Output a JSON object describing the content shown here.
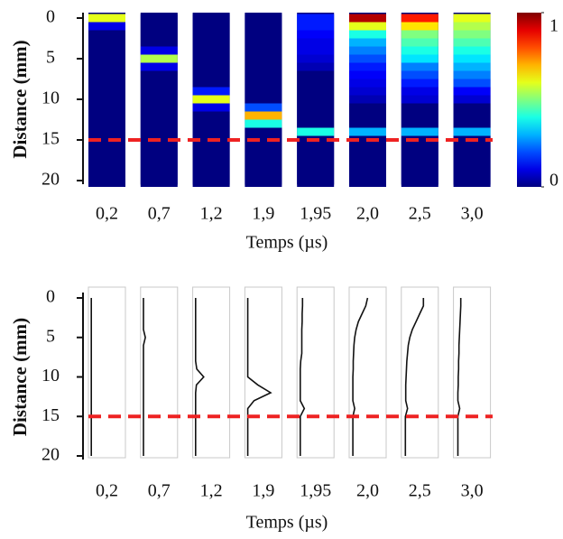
{
  "chart_data": [
    {
      "type": "heatmap",
      "categories": [
        "0,2",
        "0,7",
        "1,2",
        "1,9",
        "1,95",
        "2,0",
        "2,5",
        "3,0"
      ],
      "y": [
        0,
        1,
        2,
        3,
        4,
        5,
        6,
        7,
        8,
        9,
        10,
        11,
        12,
        13,
        14,
        15,
        16,
        17,
        18,
        19,
        20
      ],
      "values": [
        [
          0.6,
          0.1,
          0,
          0,
          0,
          0,
          0,
          0,
          0,
          0,
          0,
          0,
          0,
          0,
          0,
          0,
          0,
          0,
          0,
          0,
          0
        ],
        [
          0,
          0,
          0,
          0,
          0.1,
          0.55,
          0.1,
          0,
          0,
          0,
          0,
          0,
          0,
          0,
          0,
          0,
          0,
          0,
          0,
          0,
          0
        ],
        [
          0,
          0,
          0,
          0,
          0,
          0,
          0,
          0,
          0,
          0.15,
          0.6,
          0.1,
          0,
          0,
          0,
          0,
          0,
          0,
          0,
          0,
          0
        ],
        [
          0,
          0,
          0,
          0,
          0,
          0,
          0,
          0,
          0,
          0,
          0,
          0.2,
          0.7,
          0.4,
          0,
          0,
          0,
          0,
          0,
          0,
          0
        ],
        [
          0.15,
          0.15,
          0.12,
          0.1,
          0.1,
          0.08,
          0.05,
          0,
          0,
          0,
          0,
          0,
          0,
          0,
          0.4,
          0,
          0,
          0,
          0,
          0,
          0
        ],
        [
          0.95,
          0.6,
          0.4,
          0.3,
          0.25,
          0.2,
          0.15,
          0.12,
          0.1,
          0.08,
          0.05,
          0,
          0,
          0,
          0.3,
          0,
          0,
          0,
          0,
          0,
          0
        ],
        [
          0.85,
          0.65,
          0.5,
          0.45,
          0.4,
          0.35,
          0.25,
          0.2,
          0.15,
          0.1,
          0.08,
          0,
          0,
          0,
          0.3,
          0,
          0,
          0,
          0,
          0,
          0
        ],
        [
          0.6,
          0.55,
          0.5,
          0.45,
          0.4,
          0.35,
          0.3,
          0.25,
          0.2,
          0.12,
          0.08,
          0,
          0,
          0,
          0.3,
          0,
          0,
          0,
          0,
          0,
          0
        ]
      ],
      "ylim": [
        0,
        20
      ],
      "yticks": [
        0,
        5,
        10,
        15,
        20
      ],
      "clim": [
        0,
        1
      ],
      "cticks": [
        0,
        1
      ],
      "colormap": "jet",
      "threshold": 15,
      "threshold_color": "#ee2222",
      "xlabel": "Temps (µs)",
      "ylabel": "Distance (mm)"
    },
    {
      "type": "line",
      "categories": [
        "0,2",
        "0,7",
        "1,2",
        "1,9",
        "1,95",
        "2,0",
        "2,5",
        "3,0"
      ],
      "y": [
        0,
        1,
        2,
        3,
        4,
        5,
        6,
        7,
        8,
        9,
        10,
        11,
        12,
        13,
        14,
        15,
        16,
        17,
        18,
        19,
        20
      ],
      "values": [
        [
          0.03,
          0.03,
          0.03,
          0.03,
          0.03,
          0.03,
          0.03,
          0.03,
          0.03,
          0.03,
          0.03,
          0.03,
          0.03,
          0.03,
          0.03,
          0.03,
          0.03,
          0.03,
          0.03,
          0.03,
          0.03
        ],
        [
          0.03,
          0.03,
          0.03,
          0.03,
          0.03,
          0.08,
          0.03,
          0.03,
          0.03,
          0.03,
          0.03,
          0.03,
          0.03,
          0.03,
          0.03,
          0.03,
          0.03,
          0.03,
          0.03,
          0.03,
          0.03
        ],
        [
          0.03,
          0.03,
          0.03,
          0.03,
          0.03,
          0.03,
          0.03,
          0.03,
          0.03,
          0.06,
          0.25,
          0.05,
          0.03,
          0.03,
          0.03,
          0.03,
          0.03,
          0.03,
          0.03,
          0.03,
          0.03
        ],
        [
          0.03,
          0.03,
          0.03,
          0.03,
          0.03,
          0.03,
          0.03,
          0.03,
          0.03,
          0.03,
          0.03,
          0.3,
          0.65,
          0.2,
          0.03,
          0.03,
          0.03,
          0.03,
          0.03,
          0.03,
          0.03
        ],
        [
          0.1,
          0.1,
          0.09,
          0.09,
          0.08,
          0.08,
          0.08,
          0.08,
          0.05,
          0.04,
          0.04,
          0.04,
          0.04,
          0.04,
          0.15,
          0.04,
          0.04,
          0.04,
          0.04,
          0.04,
          0.04
        ],
        [
          0.45,
          0.4,
          0.3,
          0.2,
          0.14,
          0.1,
          0.08,
          0.07,
          0.06,
          0.06,
          0.05,
          0.05,
          0.05,
          0.05,
          0.1,
          0.05,
          0.05,
          0.05,
          0.05,
          0.05,
          0.05
        ],
        [
          0.55,
          0.55,
          0.45,
          0.35,
          0.25,
          0.18,
          0.14,
          0.12,
          0.1,
          0.09,
          0.08,
          0.07,
          0.07,
          0.07,
          0.12,
          0.06,
          0.06,
          0.06,
          0.06,
          0.06,
          0.06
        ],
        [
          0.15,
          0.15,
          0.14,
          0.13,
          0.12,
          0.11,
          0.1,
          0.1,
          0.09,
          0.09,
          0.08,
          0.08,
          0.07,
          0.07,
          0.12,
          0.07,
          0.07,
          0.07,
          0.07,
          0.07,
          0.07
        ]
      ],
      "xlim": [
        0,
        1
      ],
      "ylim": [
        0,
        20
      ],
      "yticks": [
        0,
        5,
        10,
        15,
        20
      ],
      "threshold": 15,
      "threshold_color": "#ee2222",
      "line_color": "#111111",
      "xlabel": "Temps (µs)",
      "ylabel": "Distance (mm)"
    }
  ]
}
